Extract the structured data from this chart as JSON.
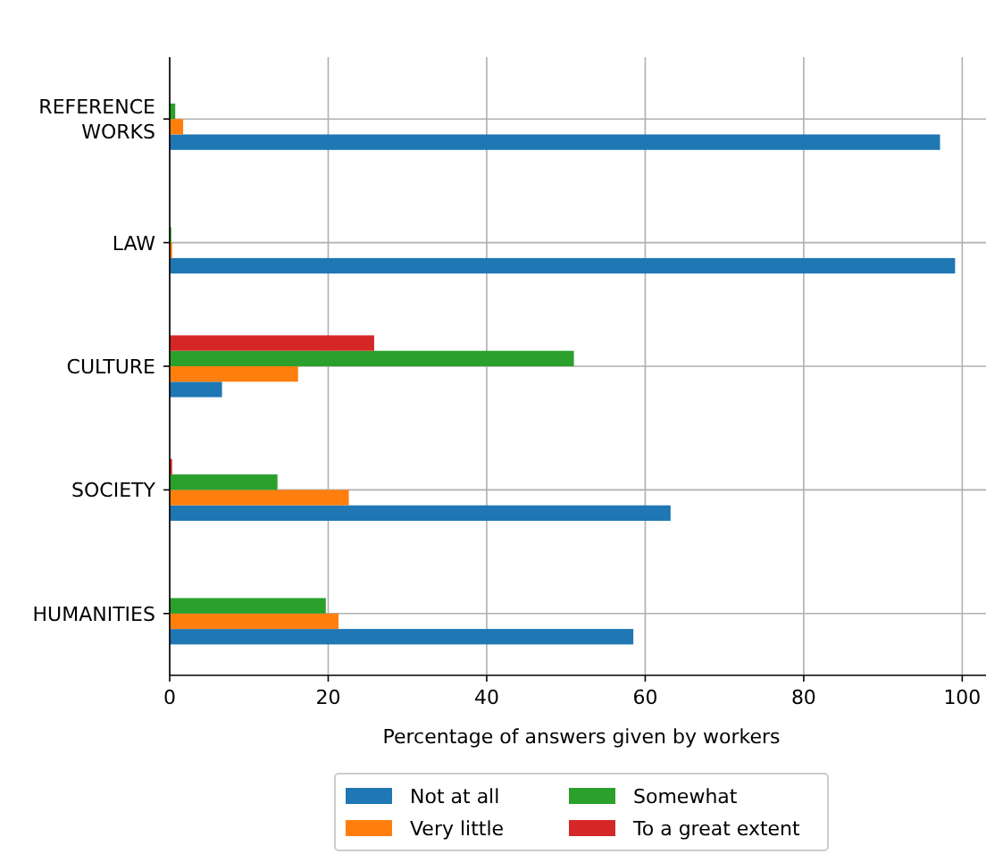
{
  "chart_data": {
    "type": "bar",
    "orientation": "horizontal",
    "xlabel": "Percentage of answers given by workers",
    "categories": [
      "REFERENCE\nWORKS",
      "LAW",
      "CULTURE",
      "SOCIETY",
      "HUMANITIES"
    ],
    "series": [
      {
        "name": "Not at all",
        "color": "#1f77b4",
        "values": [
          97.2,
          99.1,
          6.6,
          63.2,
          58.5
        ]
      },
      {
        "name": "Very little",
        "color": "#ff7f0e",
        "values": [
          1.7,
          0.3,
          16.2,
          22.6,
          21.3
        ]
      },
      {
        "name": "Somewhat",
        "color": "#2ca02c",
        "values": [
          0.7,
          0.2,
          51.0,
          13.6,
          19.7
        ]
      },
      {
        "name": "To a great extent",
        "color": "#d62728",
        "values": [
          0,
          0,
          25.8,
          0.3,
          0
        ]
      }
    ],
    "xlim": [
      0,
      103
    ],
    "xticks": [
      0,
      20,
      40,
      60,
      80,
      100
    ],
    "grid": true,
    "legend": "bottom"
  }
}
